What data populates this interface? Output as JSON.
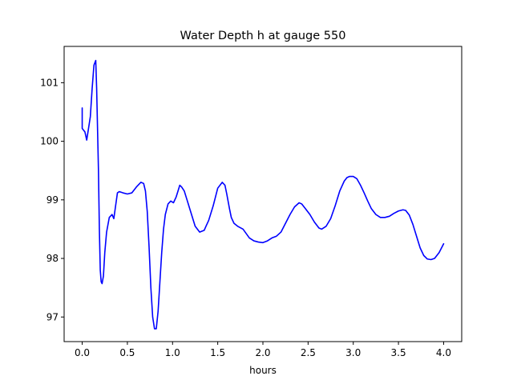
{
  "chart_data": {
    "type": "line",
    "title": "Water Depth h at gauge 550",
    "xlabel": "hours",
    "ylabel": "",
    "xlim": [
      -0.2,
      4.2
    ],
    "ylim": [
      96.58,
      101.62
    ],
    "xticks": [
      0.0,
      0.5,
      1.0,
      1.5,
      2.0,
      2.5,
      3.0,
      3.5,
      4.0
    ],
    "xtick_labels": [
      "0.0",
      "0.5",
      "1.0",
      "1.5",
      "2.0",
      "2.5",
      "3.0",
      "3.5",
      "4.0"
    ],
    "yticks": [
      97,
      98,
      99,
      100,
      101
    ],
    "ytick_labels": [
      "97",
      "98",
      "99",
      "100",
      "101"
    ],
    "grid": false,
    "series": [
      {
        "color": "#0000ff",
        "x": [
          0.0,
          0.0,
          0.01,
          0.03,
          0.05,
          0.07,
          0.09,
          0.11,
          0.13,
          0.15,
          0.16,
          0.18,
          0.19,
          0.2,
          0.21,
          0.22,
          0.235,
          0.25,
          0.27,
          0.3,
          0.33,
          0.35,
          0.37,
          0.39,
          0.41,
          0.43,
          0.45,
          0.5,
          0.55,
          0.6,
          0.65,
          0.68,
          0.7,
          0.72,
          0.74,
          0.76,
          0.78,
          0.8,
          0.82,
          0.84,
          0.86,
          0.88,
          0.9,
          0.92,
          0.95,
          0.98,
          1.01,
          1.04,
          1.06,
          1.08,
          1.1,
          1.13,
          1.16,
          1.2,
          1.25,
          1.3,
          1.35,
          1.37,
          1.4,
          1.45,
          1.5,
          1.55,
          1.58,
          1.6,
          1.63,
          1.65,
          1.68,
          1.72,
          1.78,
          1.85,
          1.9,
          1.95,
          2.0,
          2.05,
          2.1,
          2.15,
          2.2,
          2.25,
          2.3,
          2.35,
          2.4,
          2.43,
          2.47,
          2.52,
          2.57,
          2.62,
          2.65,
          2.7,
          2.75,
          2.8,
          2.85,
          2.9,
          2.93,
          2.96,
          3.0,
          3.04,
          3.08,
          3.12,
          3.16,
          3.2,
          3.25,
          3.3,
          3.35,
          3.4,
          3.45,
          3.5,
          3.55,
          3.58,
          3.62,
          3.66,
          3.7,
          3.74,
          3.78,
          3.82,
          3.86,
          3.9,
          3.95,
          4.0
        ],
        "y": [
          100.57,
          100.22,
          100.2,
          100.16,
          100.02,
          100.22,
          100.42,
          100.9,
          101.3,
          101.38,
          100.9,
          99.5,
          98.5,
          97.8,
          97.6,
          97.57,
          97.7,
          98.1,
          98.45,
          98.7,
          98.75,
          98.68,
          98.9,
          99.12,
          99.14,
          99.13,
          99.12,
          99.1,
          99.12,
          99.22,
          99.3,
          99.28,
          99.15,
          98.8,
          98.2,
          97.5,
          97.0,
          96.8,
          96.8,
          97.1,
          97.6,
          98.1,
          98.5,
          98.75,
          98.93,
          98.98,
          98.95,
          99.05,
          99.15,
          99.25,
          99.22,
          99.15,
          99.0,
          98.8,
          98.55,
          98.45,
          98.48,
          98.55,
          98.65,
          98.9,
          99.2,
          99.3,
          99.25,
          99.1,
          98.85,
          98.7,
          98.6,
          98.55,
          98.5,
          98.35,
          98.3,
          98.28,
          98.27,
          98.3,
          98.35,
          98.38,
          98.45,
          98.6,
          98.75,
          98.88,
          98.95,
          98.93,
          98.85,
          98.75,
          98.62,
          98.52,
          98.5,
          98.55,
          98.68,
          98.9,
          99.15,
          99.32,
          99.38,
          99.4,
          99.4,
          99.36,
          99.25,
          99.12,
          98.98,
          98.85,
          98.75,
          98.7,
          98.7,
          98.72,
          98.77,
          98.81,
          98.83,
          98.82,
          98.74,
          98.58,
          98.38,
          98.18,
          98.05,
          97.99,
          97.98,
          98.0,
          98.1,
          98.25
        ]
      }
    ]
  }
}
